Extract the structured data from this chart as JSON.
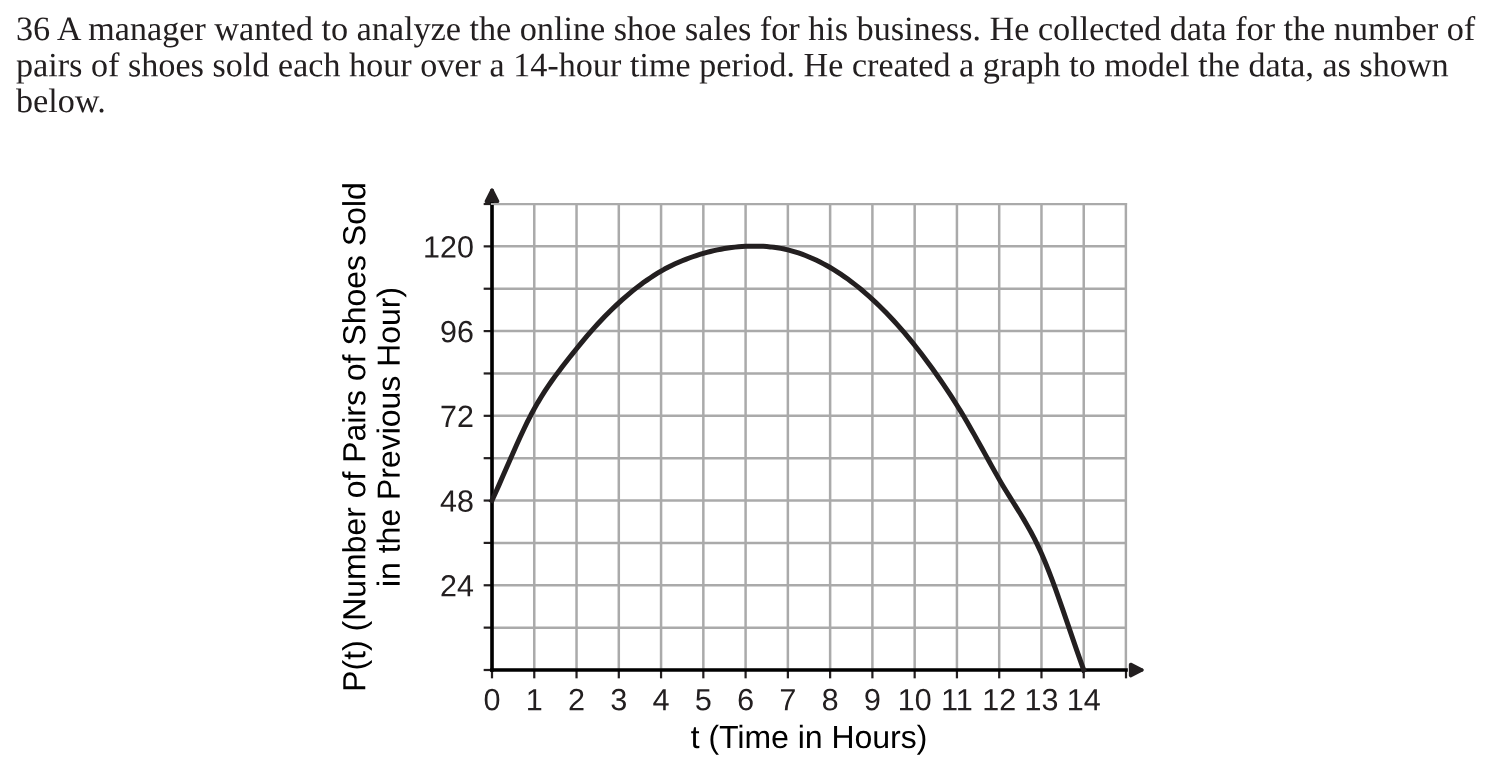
{
  "chart_data": {
    "type": "line",
    "title": "36 A manager wanted to analyze the online shoe sales for his business. He collected data for the number of pairs of shoes sold each hour over a 14-hour time period. He created a graph to model the data, as shown below.",
    "xlabel": "t (Time in Hours)",
    "ylabel": "P(t) (Number of Pairs of Shoes Sold\nin the Previous Hour)",
    "x": [
      0,
      1,
      2,
      3,
      4,
      5,
      6,
      7,
      8,
      9,
      10,
      11,
      12,
      13,
      14
    ],
    "series": [
      {
        "color": "#231f20",
        "values": [
          48,
          74,
          91,
          104,
          113,
          118,
          120,
          119,
          114,
          105,
          92,
          75,
          54,
          33,
          0
        ]
      }
    ],
    "xlim": [
      0,
      15
    ],
    "ylim": [
      0,
      132
    ],
    "xticks": [
      0,
      1,
      2,
      3,
      4,
      5,
      6,
      7,
      8,
      9,
      10,
      11,
      12,
      13,
      14,
      {
        "value": 15,
        "label": null
      }
    ],
    "yticks": [
      {
        "value": 0,
        "label": null
      },
      {
        "value": 12,
        "label": null
      },
      24,
      {
        "value": 36,
        "label": null
      },
      48,
      {
        "value": 60,
        "label": null
      },
      72,
      {
        "value": 84,
        "label": null
      },
      96,
      {
        "value": 108,
        "label": null
      },
      120,
      {
        "value": 132,
        "label": null
      }
    ],
    "grid": true,
    "marker": "none",
    "line_style": "solid"
  }
}
